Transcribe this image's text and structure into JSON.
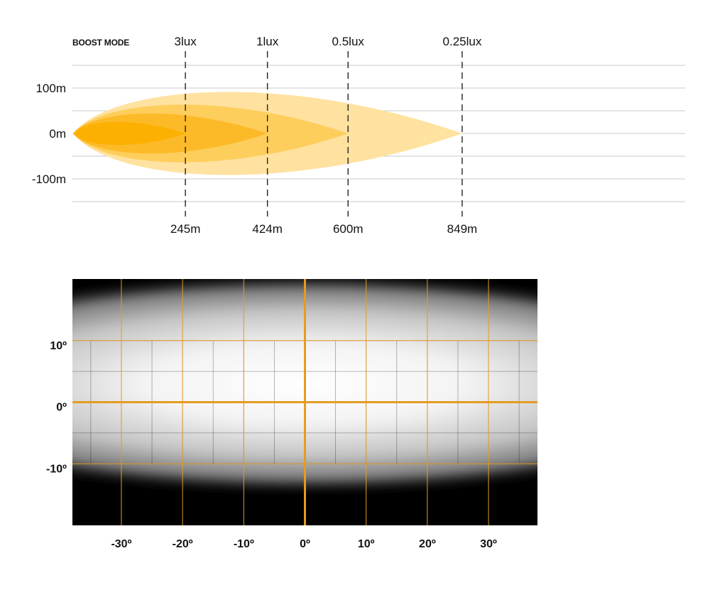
{
  "chart_data": [
    {
      "type": "area",
      "title": "BOOST MODE",
      "x_unit": "m",
      "y_ticks": [
        "100m",
        "0m",
        "-100m"
      ],
      "y_tick_values": [
        100,
        0,
        -100
      ],
      "ylim": [
        -150,
        150
      ],
      "grid": true,
      "colors": [
        "#FFE2A0",
        "#FECE5C",
        "#FDBA28",
        "#FCB000"
      ],
      "series": [
        {
          "name": "0.25lux",
          "distance_m": 849,
          "distance_label": "849m",
          "half_width_m": 108
        },
        {
          "name": "0.5lux",
          "distance_m": 600,
          "distance_label": "600m",
          "half_width_m": 75
        },
        {
          "name": "1lux",
          "distance_m": 424,
          "distance_label": "424m",
          "half_width_m": 52
        },
        {
          "name": "3lux",
          "distance_m": 245,
          "distance_label": "245m",
          "half_width_m": 30
        }
      ]
    },
    {
      "type": "heatmap",
      "x_ticks": [
        "-30º",
        "-20º",
        "-10º",
        "0º",
        "10º",
        "20º",
        "30º"
      ],
      "x_tick_values": [
        -30,
        -20,
        -10,
        0,
        10,
        20,
        30
      ],
      "y_ticks": [
        "10º",
        "0º",
        "-10º"
      ],
      "y_tick_values": [
        10,
        0,
        -10
      ],
      "xlim": [
        -38,
        38
      ],
      "ylim": [
        -20,
        20
      ],
      "beam_center_deg": [
        0,
        3
      ],
      "beam_halfwidth_deg": [
        38,
        9
      ],
      "grid_color": "#E59B22",
      "background_color": "#000000"
    }
  ]
}
